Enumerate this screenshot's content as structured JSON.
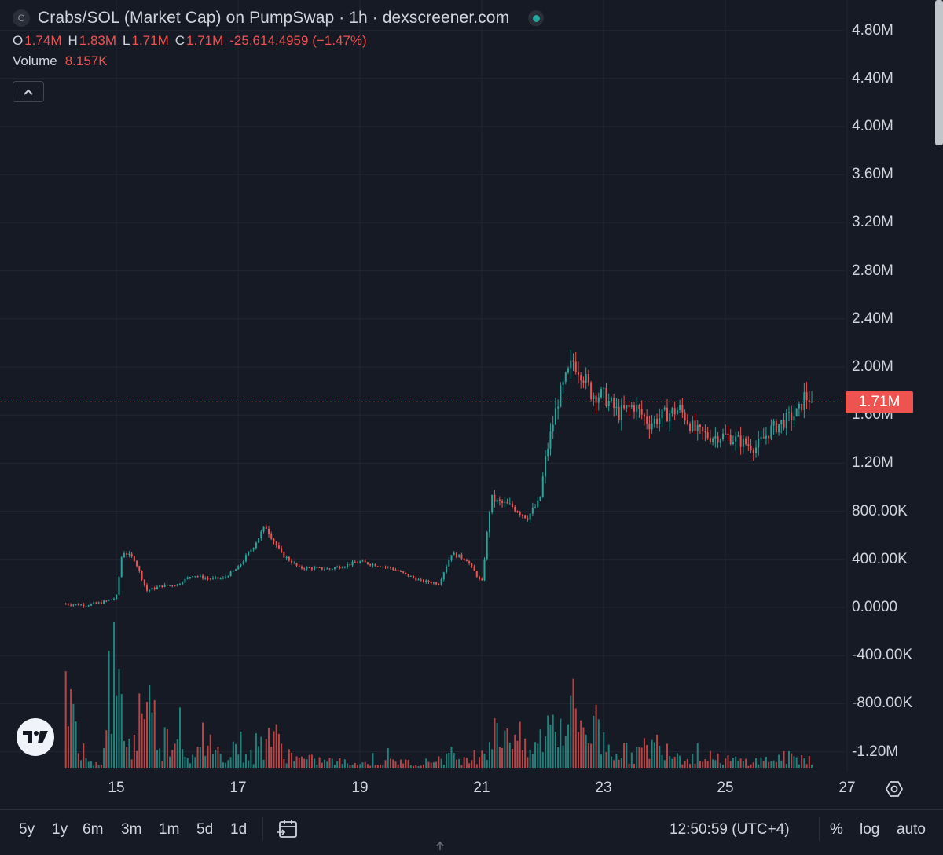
{
  "header": {
    "symbol_icon": "C",
    "title": "Crabs/SOL (Market Cap) on PumpSwap · 1h · dexscreener.com",
    "status_icon": "live-status-dot-icon"
  },
  "ohlc": {
    "o_label": "O",
    "o": "1.74M",
    "h_label": "H",
    "h": "1.83M",
    "l_label": "L",
    "l": "1.71M",
    "c_label": "C",
    "c": "1.71M",
    "change": "-25,614.4959 (−1.47%)"
  },
  "volume_legend": {
    "label": "Volume",
    "value": "8.157K"
  },
  "colors": {
    "up": "#26a69a",
    "down": "#ef5350",
    "background": "#161a25",
    "grid": "#232632"
  },
  "price_tag": "1.71M",
  "toolbar": {
    "timeframes": [
      "5y",
      "1y",
      "6m",
      "3m",
      "1m",
      "5d",
      "1d"
    ],
    "clock": "12:50:59 (UTC+4)",
    "percent": "%",
    "log": "log",
    "auto": "auto"
  },
  "chart_data": {
    "type": "candlestick",
    "title": "Crabs/SOL (Market Cap) on PumpSwap · 1h · dexscreener.com",
    "y_axis": {
      "ticks": [
        "4.80M",
        "4.40M",
        "4.00M",
        "3.60M",
        "3.20M",
        "2.80M",
        "2.40M",
        "2.00M",
        "1.60M",
        "1.20M",
        "800.00K",
        "400.00K",
        "0.0000",
        "-400.00K",
        "-800.00K",
        "-1.20M"
      ],
      "tick_values": [
        4800000,
        4400000,
        4000000,
        3600000,
        3200000,
        2800000,
        2400000,
        2000000,
        1600000,
        1200000,
        800000,
        400000,
        0,
        -400000,
        -800000,
        -1200000
      ],
      "range": [
        -1200000,
        4800000
      ]
    },
    "x_axis": {
      "ticks": [
        "15",
        "17",
        "19",
        "21",
        "23",
        "25",
        "27"
      ],
      "tick_values": [
        15,
        17,
        19,
        21,
        23,
        25,
        27
      ],
      "range": [
        14.17,
        26.42
      ]
    },
    "grid": true,
    "last_price": 1710000,
    "price_series_days": [
      14.17,
      14.5,
      14.75,
      15.0,
      15.1,
      15.3,
      15.5,
      15.75,
      16.0,
      16.25,
      16.5,
      16.75,
      17.0,
      17.25,
      17.45,
      17.7,
      18.0,
      18.5,
      19.0,
      19.5,
      20.0,
      20.3,
      20.5,
      20.75,
      21.0,
      21.15,
      21.25,
      21.5,
      21.75,
      21.95,
      22.05,
      22.25,
      22.5,
      22.65,
      22.8,
      23.0,
      23.25,
      23.5,
      23.75,
      24.0,
      24.25,
      24.5,
      24.75,
      25.0,
      25.25,
      25.5,
      25.75,
      26.0,
      26.2,
      26.3,
      26.42
    ],
    "price_series_values": [
      30000,
      20000,
      40000,
      80000,
      470000,
      400000,
      140000,
      180000,
      190000,
      270000,
      240000,
      240000,
      330000,
      510000,
      680000,
      450000,
      330000,
      320000,
      380000,
      330000,
      220000,
      200000,
      450000,
      400000,
      200000,
      910000,
      880000,
      840000,
      750000,
      880000,
      1250000,
      1720000,
      2050000,
      1950000,
      1780000,
      1760000,
      1610000,
      1680000,
      1530000,
      1600000,
      1650000,
      1470000,
      1420000,
      1430000,
      1380000,
      1330000,
      1480000,
      1560000,
      1620000,
      1760000,
      1710000
    ],
    "volume_series_days": [
      14.25,
      14.5,
      14.75,
      14.85,
      14.9,
      15.0,
      15.1,
      15.25,
      15.45,
      15.75,
      16.0,
      16.25,
      16.5,
      16.75,
      17.0,
      17.25,
      17.5,
      17.75,
      18.0,
      18.5,
      19.0,
      19.5,
      20.0,
      20.5,
      20.75,
      21.0,
      21.25,
      21.5,
      21.75,
      21.95,
      22.1,
      22.25,
      22.5,
      22.6,
      22.75,
      23.0,
      23.25,
      23.5,
      23.75,
      24.0,
      24.25,
      24.5,
      24.75,
      25.0,
      25.25,
      25.5,
      25.75,
      26.0,
      26.25
    ],
    "volume_series_rel": [
      0.85,
      0.08,
      0.05,
      0.35,
      0.99,
      0.92,
      0.6,
      0.15,
      0.9,
      0.3,
      0.45,
      0.1,
      0.25,
      0.15,
      0.3,
      0.1,
      0.45,
      0.2,
      0.1,
      0.08,
      0.05,
      0.08,
      0.05,
      0.15,
      0.08,
      0.2,
      0.4,
      0.5,
      0.15,
      0.3,
      0.5,
      0.55,
      0.65,
      0.6,
      0.45,
      0.3,
      0.2,
      0.15,
      0.25,
      0.3,
      0.15,
      0.12,
      0.1,
      0.1,
      0.08,
      0.08,
      0.1,
      0.12,
      0.12
    ]
  }
}
